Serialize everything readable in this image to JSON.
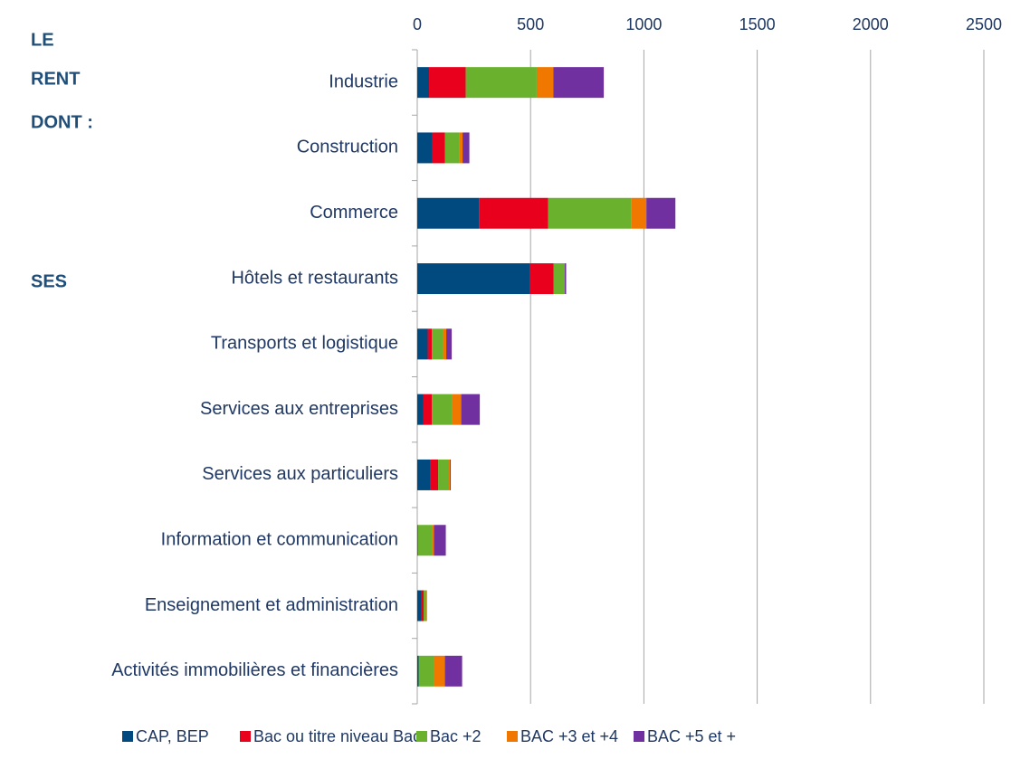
{
  "annotations": [
    "LE",
    "RENT",
    "DONT :",
    "SES"
  ],
  "chart_data": {
    "type": "stacked_barh",
    "categories": [
      "Industrie",
      "Construction",
      "Commerce",
      "Hôtels et restaurants",
      "Transports et logistique",
      "Services aux entreprises",
      "Services aux particuliers",
      "Information et communication",
      "Enseignement et administration",
      "Activités immobilières et financières"
    ],
    "series": [
      {
        "name": "CAP, BEP",
        "color": "#004a80",
        "values": [
          52,
          66,
          272,
          497,
          46,
          26,
          56,
          2,
          16,
          6
        ]
      },
      {
        "name": "Bac ou titre niveau Bac",
        "color": "#e8001c",
        "values": [
          162,
          56,
          306,
          104,
          18,
          38,
          36,
          0,
          12,
          0
        ]
      },
      {
        "name": "Bac +2",
        "color": "#6ab22e",
        "values": [
          313,
          64,
          365,
          48,
          50,
          90,
          48,
          62,
          10,
          66
        ]
      },
      {
        "name": "BAC +3 et +4",
        "color": "#f07800",
        "values": [
          74,
          14,
          68,
          2,
          14,
          40,
          4,
          10,
          2,
          50
        ]
      },
      {
        "name": "BAC +5 et +",
        "color": "#7030a0",
        "values": [
          222,
          30,
          128,
          6,
          24,
          82,
          4,
          52,
          2,
          76
        ]
      }
    ],
    "xlim": [
      0,
      2500
    ],
    "xticks": [
      0,
      500,
      1000,
      1500,
      2000,
      2500
    ],
    "grid": true,
    "legend": "bottom"
  }
}
